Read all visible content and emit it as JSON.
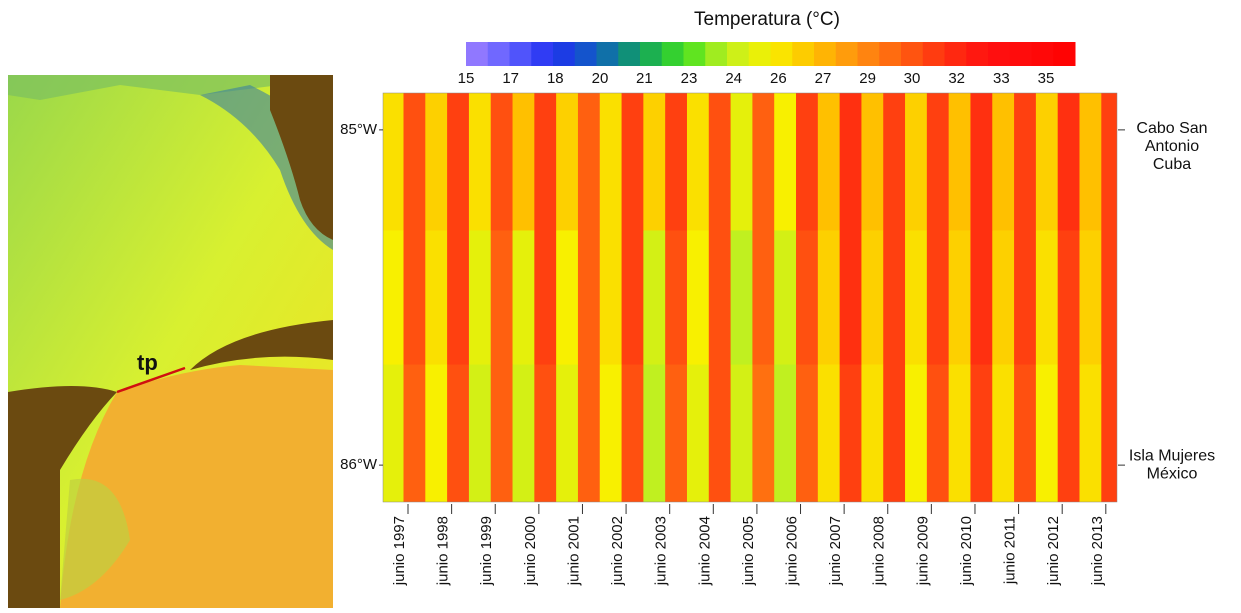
{
  "chart_data": {
    "type": "heatmap",
    "title": "Temperatura (°C)",
    "colorbar": {
      "lim": [
        15,
        36
      ],
      "ticks": [
        15,
        {
          "value": 16.54,
          "label": "17"
        },
        {
          "value": 18.08,
          "label": "18"
        },
        {
          "value": 19.62,
          "label": "20"
        },
        {
          "value": 21.15,
          "label": "21"
        },
        {
          "value": 22.69,
          "label": "23"
        },
        {
          "value": 24.23,
          "label": "24"
        },
        {
          "value": 25.77,
          "label": "26"
        },
        {
          "value": 27.31,
          "label": "27"
        },
        {
          "value": 28.85,
          "label": "29"
        },
        {
          "value": 30.38,
          "label": "30"
        },
        {
          "value": 31.92,
          "label": "32"
        },
        {
          "value": 33.46,
          "label": "33"
        },
        35
      ]
    },
    "colorscale": [
      "#a080ff",
      "#6060ff",
      "#2030f0",
      "#1060c0",
      "#10a060",
      "#40e020",
      "#c0f020",
      "#f8f000",
      "#ffc000",
      "#ff9010",
      "#ff6010",
      "#ff3010",
      "#ff1010",
      "#ff0a0a",
      "#ff0000"
    ],
    "x": [
      1997.25,
      1997.75,
      1998.25,
      1998.75,
      1999.25,
      1999.75,
      2000.25,
      2000.75,
      2001.25,
      2001.75,
      2002.25,
      2002.75,
      2003.25,
      2003.75,
      2004.25,
      2004.75,
      2005.25,
      2005.75,
      2006.25,
      2006.75,
      2007.25,
      2007.75,
      2008.25,
      2008.75,
      2009.25,
      2009.75,
      2010.25,
      2010.75,
      2011.25,
      2011.75,
      2012.25,
      2012.75,
      2013.25,
      2013.75
    ],
    "xlim": [
      1997.03,
      2013.86
    ],
    "xticks": [
      {
        "value": 1997.42,
        "label": "junio 1997"
      },
      {
        "value": 1998.42,
        "label": "junio 1998"
      },
      {
        "value": 1999.42,
        "label": "junio 1999"
      },
      {
        "value": 2000.42,
        "label": "junio 2000"
      },
      {
        "value": 2001.42,
        "label": "junio 2001"
      },
      {
        "value": 2002.42,
        "label": "junio 2002"
      },
      {
        "value": 2003.42,
        "label": "junio 2003"
      },
      {
        "value": 2004.42,
        "label": "junio 2004"
      },
      {
        "value": 2005.42,
        "label": "junio 2005"
      },
      {
        "value": 2006.42,
        "label": "junio 2006"
      },
      {
        "value": 2007.42,
        "label": "junio 2007"
      },
      {
        "value": 2008.42,
        "label": "junio 2008"
      },
      {
        "value": 2009.42,
        "label": "junio 2009"
      },
      {
        "value": 2010.42,
        "label": "junio 2010"
      },
      {
        "value": 2011.42,
        "label": "junio 2011"
      },
      {
        "value": 2012.42,
        "label": "junio 2012"
      },
      {
        "value": 2013.42,
        "label": "junio 2013"
      }
    ],
    "y": [
      85.1,
      85.5,
      85.9
    ],
    "ylim": [
      84.89,
      86.11
    ],
    "yticks": [
      {
        "value": 85,
        "label": "85°W"
      },
      {
        "value": 86,
        "label": "86°W"
      }
    ],
    "z": [
      [
        26,
        30.5,
        26.5,
        31,
        26,
        30.5,
        27,
        31,
        26.5,
        30,
        26,
        31,
        26.5,
        31,
        26,
        30.5,
        25,
        30,
        25.5,
        31,
        27,
        31.5,
        27,
        31,
        26.5,
        31,
        27,
        31.5,
        27,
        31,
        26.5,
        31.5,
        27,
        31
      ],
      [
        25.5,
        30.5,
        26,
        31,
        25,
        30,
        25,
        31,
        25.5,
        30,
        26,
        31,
        24.5,
        30.5,
        25.5,
        30.5,
        24,
        30,
        24.5,
        30.5,
        26.5,
        31.5,
        26.5,
        31,
        26,
        31,
        26.5,
        31.5,
        26.5,
        31,
        26,
        31,
        26.5,
        31
      ],
      [
        25,
        30,
        25.5,
        30.5,
        24.5,
        30,
        24.5,
        30.5,
        25,
        30,
        25.5,
        30.5,
        24,
        30,
        25,
        30.5,
        24.5,
        29.5,
        24,
        30,
        26,
        31,
        26,
        31,
        25.5,
        30.5,
        26,
        31,
        26,
        30.5,
        25.5,
        31,
        26,
        31
      ]
    ],
    "annotations": [
      {
        "y": 85,
        "lines": [
          "Cabo San",
          "Antonio",
          "Cuba"
        ]
      },
      {
        "y": 86,
        "lines": [
          "Isla Mujeres",
          "México"
        ]
      }
    ],
    "inset_label": "tp"
  }
}
